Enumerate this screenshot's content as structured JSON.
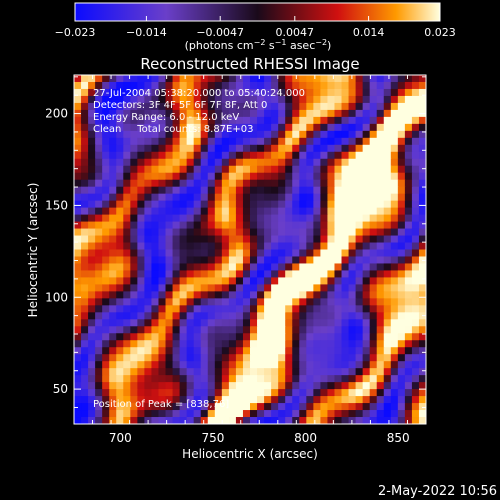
{
  "chart_data": {
    "type": "heatmap",
    "title": "Reconstructed RHESSI Image",
    "xlabel": "Heliocentric X (arcsec)",
    "ylabel": "Heliocentric Y (arcsec)",
    "xlim": [
      675,
      865
    ],
    "ylim": [
      31,
      221
    ],
    "x_ticks": [
      700,
      750,
      800,
      850
    ],
    "y_ticks": [
      50,
      100,
      150,
      200
    ],
    "colorbar": {
      "ticks": [
        "−0.023",
        "−0.014",
        "−0.0047",
        "0.0047",
        "0.014",
        "0.023"
      ],
      "tick_values": [
        -0.023,
        -0.014,
        -0.0047,
        0.0047,
        0.014,
        0.023
      ],
      "range": [
        -0.023,
        0.023
      ],
      "label_main": "(photons cm",
      "label_sup1": "−2",
      "label_mid": " s",
      "label_sup2": "−1",
      "label_mid2": " asec",
      "label_sup3": "−2",
      "label_end": ")"
    },
    "annotations": [
      "27-Jul-2004 05:38:20.000 to 05:40:24.000",
      "Detectors: 3F 4F 5F 6F 7F 8F, Att 0",
      "Energy Range: 6.0 - 12.0 keV",
      "Clean     Total counts: 8.87E+03"
    ],
    "peak_label": "Position of Peak = [838,76]",
    "peak": [
      838,
      76
    ],
    "grid": false
  },
  "footer_date": "2-May-2022 10:56"
}
